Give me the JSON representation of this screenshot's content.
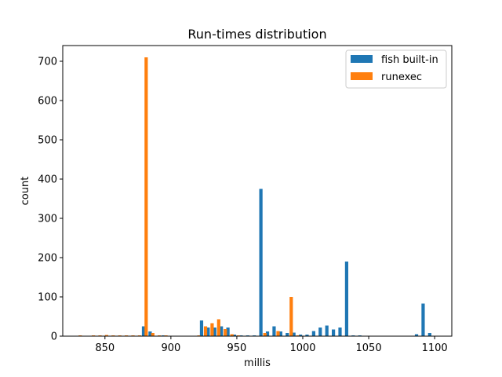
{
  "chart_data": {
    "type": "bar",
    "title": "Run-times distribution",
    "xlabel": "millis",
    "ylabel": "count",
    "xlim": [
      818,
      1113
    ],
    "ylim": [
      0,
      740
    ],
    "xticks": [
      850,
      900,
      950,
      1000,
      1050,
      1100
    ],
    "yticks": [
      0,
      100,
      200,
      300,
      400,
      500,
      600,
      700
    ],
    "bin_width": 2.5,
    "legend_position": "upper right",
    "series": [
      {
        "name": "fish built-in",
        "color": "#1f77b4",
        "bins": [
          [
            878,
            25
          ],
          [
            883,
            12
          ],
          [
            893,
            2
          ],
          [
            922,
            40
          ],
          [
            927,
            22
          ],
          [
            932,
            22
          ],
          [
            937,
            25
          ],
          [
            942,
            22
          ],
          [
            947,
            4
          ],
          [
            952,
            2
          ],
          [
            957,
            2
          ],
          [
            962,
            2
          ],
          [
            967,
            375
          ],
          [
            972,
            12
          ],
          [
            977,
            25
          ],
          [
            982,
            12
          ],
          [
            987,
            8
          ],
          [
            992,
            9
          ],
          [
            997,
            4
          ],
          [
            1002,
            4
          ],
          [
            1007,
            13
          ],
          [
            1012,
            22
          ],
          [
            1017,
            27
          ],
          [
            1022,
            17
          ],
          [
            1027,
            22
          ],
          [
            1032,
            190
          ],
          [
            1037,
            2
          ],
          [
            1042,
            2
          ],
          [
            1085,
            5
          ],
          [
            1090,
            83
          ],
          [
            1095,
            8
          ]
        ]
      },
      {
        "name": "runexec",
        "color": "#ff7f0e",
        "bins": [
          [
            830,
            2
          ],
          [
            840,
            2
          ],
          [
            845,
            2
          ],
          [
            850,
            3
          ],
          [
            855,
            2
          ],
          [
            860,
            2
          ],
          [
            865,
            2
          ],
          [
            870,
            2
          ],
          [
            875,
            2
          ],
          [
            880,
            710
          ],
          [
            885,
            8
          ],
          [
            890,
            2
          ],
          [
            895,
            2
          ],
          [
            920,
            2
          ],
          [
            925,
            25
          ],
          [
            930,
            33
          ],
          [
            935,
            43
          ],
          [
            940,
            18
          ],
          [
            945,
            5
          ],
          [
            950,
            2
          ],
          [
            970,
            8
          ],
          [
            980,
            13
          ],
          [
            990,
            100
          ],
          [
            995,
            2
          ]
        ]
      }
    ]
  }
}
